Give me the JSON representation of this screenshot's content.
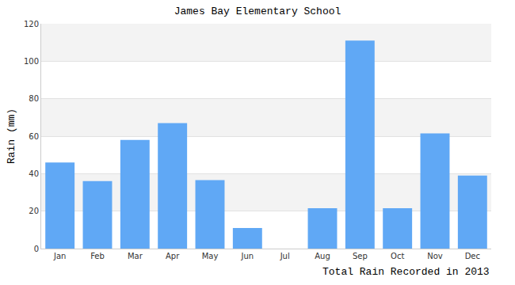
{
  "chart_data": {
    "type": "bar",
    "title": "James Bay Elementary School",
    "ylabel": "Rain (mm)",
    "annotations": [
      "Total Rain Recorded in 2013"
    ],
    "categories": [
      "Jan",
      "Feb",
      "Mar",
      "Apr",
      "May",
      "Jun",
      "Jul",
      "Aug",
      "Sep",
      "Oct",
      "Nov",
      "Dec"
    ],
    "values": [
      46,
      36,
      58,
      67,
      36.5,
      11,
      0,
      21.5,
      111,
      21.5,
      61.5,
      39
    ],
    "color": "#60a8f5",
    "ylim": [
      0,
      120
    ],
    "yticks": [
      0,
      20,
      40,
      60,
      80,
      100,
      120
    ],
    "grid": true
  }
}
